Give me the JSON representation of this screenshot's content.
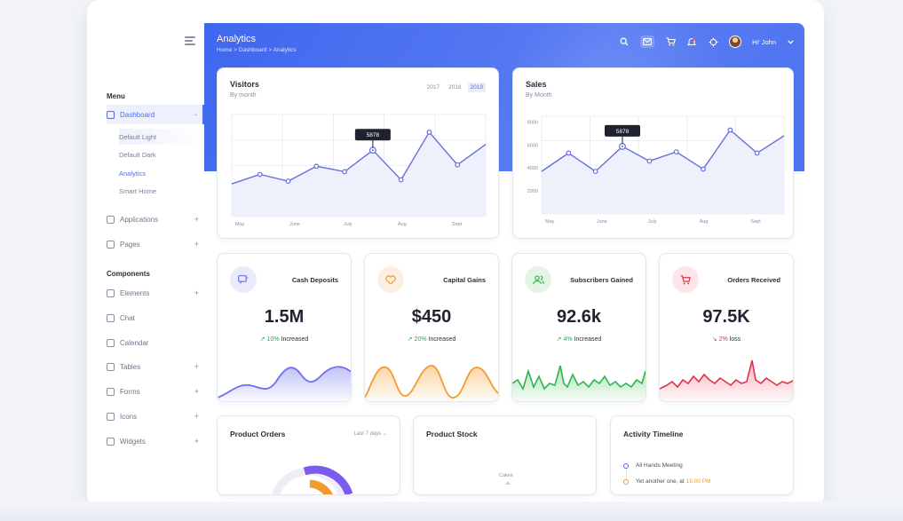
{
  "header": {
    "title": "Analytics",
    "breadcrumb": "Home > Dashboard > Analytics",
    "user": "Hi' John"
  },
  "sidebar": {
    "menu_title": "Menu",
    "components_title": "Components",
    "dashboard": "Dashboard",
    "dashboard_toggle": "-",
    "sub_items": [
      "Default Light",
      "Default Dark",
      "Analytics",
      "Smart Home"
    ],
    "items_top": [
      {
        "label": "Applications",
        "plus": "+"
      },
      {
        "label": "Pages",
        "plus": "+"
      }
    ],
    "items_components": [
      {
        "label": "Elements",
        "plus": "+"
      },
      {
        "label": "Chat",
        "plus": ""
      },
      {
        "label": "Calendar",
        "plus": ""
      },
      {
        "label": "Tables",
        "plus": "+"
      },
      {
        "label": "Forms",
        "plus": "+"
      },
      {
        "label": "Icons",
        "plus": "+"
      },
      {
        "label": "Widgets",
        "plus": "+"
      }
    ]
  },
  "visitors": {
    "title": "Visitors",
    "subtitle": "By month",
    "years": [
      "2017",
      "2018",
      "2019"
    ],
    "selected_year": "2019",
    "tooltip": "5878"
  },
  "sales": {
    "title": "Sales",
    "subtitle": "By Month",
    "tooltip": "5878"
  },
  "stats": [
    {
      "title": "Cash Deposits",
      "value": "1.5M",
      "change": "10%",
      "change_text": "Increased",
      "trend": "up",
      "color": "#6c6ff0",
      "icon": "chat-icon"
    },
    {
      "title": "Capital Gains",
      "value": "$450",
      "change": "20%",
      "change_text": "Increased",
      "trend": "up",
      "color": "#f39a2b",
      "icon": "heart-icon"
    },
    {
      "title": "Subscribers Gained",
      "value": "92.6k",
      "change": "4%",
      "change_text": "Increased",
      "trend": "up",
      "color": "#2fb54b",
      "icon": "users-icon"
    },
    {
      "title": "Orders Received",
      "value": "97.5K",
      "change": "2%",
      "change_text": "loss",
      "trend": "down",
      "color": "#e0334a",
      "icon": "cart-icon"
    }
  ],
  "bottom": {
    "orders_title": "Product Orders",
    "orders_range": "Last 7 days",
    "stock_title": "Product Stock",
    "stock_label": "Cakes",
    "timeline_title": "Activity Timeline",
    "timeline": [
      {
        "text": "All Hands Meeting",
        "time": "",
        "color": "#4b6ef5"
      },
      {
        "text": "Yet another one, at",
        "time": "15:00 PM",
        "color": "#f39a2b"
      }
    ]
  },
  "chart_data": [
    {
      "type": "area",
      "title": "Visitors",
      "x_labels": [
        "May",
        "June",
        "July",
        "Aug",
        "Sept"
      ],
      "values": [
        3400,
        4100,
        3600,
        4700,
        4300,
        5878,
        3700,
        7200,
        4800,
        6300
      ],
      "ylim": [
        1000,
        8500
      ],
      "annotation": "5878"
    },
    {
      "type": "area",
      "title": "Sales",
      "x_labels": [
        "May",
        "June",
        "July",
        "Aug",
        "Sept"
      ],
      "y_ticks": [
        2000,
        4000,
        6000,
        8000
      ],
      "values": [
        3700,
        5300,
        3700,
        5878,
        4600,
        5400,
        3900,
        7300,
        5300,
        6800
      ],
      "ylim": [
        0,
        8500
      ],
      "annotation": "5878"
    }
  ]
}
